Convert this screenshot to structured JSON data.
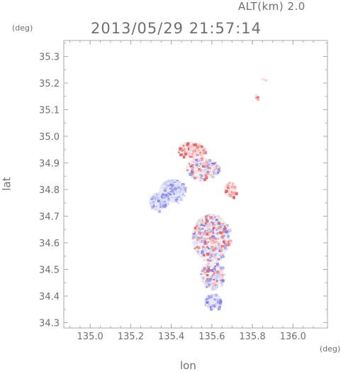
{
  "header": {
    "altitude_label": "ALT(km)  2.0",
    "timestamp": "2013/05/29 21:57:14"
  },
  "chart_data": {
    "type": "heatmap",
    "title": "2013/05/29 21:57:14",
    "subtitle": "ALT(km)  2.0",
    "xlabel": "lon",
    "ylabel": "lat",
    "x_unit": "(deg)",
    "y_unit": "(deg)",
    "xlim": [
      134.87,
      136.17
    ],
    "ylim": [
      34.28,
      35.36
    ],
    "x_ticks": [
      135.0,
      135.2,
      135.4,
      135.6,
      135.8,
      136.0
    ],
    "x_tick_labels": [
      "135.0",
      "135.2",
      "135.4",
      "135.6",
      "135.8",
      "136.0"
    ],
    "y_ticks": [
      34.3,
      34.4,
      34.5,
      34.6,
      34.7,
      34.8,
      34.9,
      35.0,
      35.1,
      35.2,
      35.3
    ],
    "y_tick_labels": [
      "34.3",
      "34.4",
      "34.5",
      "34.6",
      "34.7",
      "34.8",
      "34.9",
      "35.0",
      "35.1",
      "35.2",
      "35.3"
    ],
    "grid": false,
    "colors": {
      "positive": "#f07878",
      "negative": "#8c8cf0",
      "frame": "#aaaaaa",
      "text": "#6f6f6f"
    },
    "regions": [
      {
        "sign": "negative",
        "lon": [
          135.34,
          135.47
        ],
        "lat": [
          34.75,
          34.84
        ]
      },
      {
        "sign": "negative",
        "lon": [
          135.29,
          135.38
        ],
        "lat": [
          34.72,
          34.79
        ]
      },
      {
        "sign": "positive",
        "lon": [
          135.43,
          135.57
        ],
        "lat": [
          34.92,
          34.98
        ]
      },
      {
        "sign": "mixed",
        "lon": [
          135.47,
          135.63
        ],
        "lat": [
          34.84,
          34.92
        ]
      },
      {
        "sign": "positive",
        "lon": [
          135.66,
          135.72
        ],
        "lat": [
          34.77,
          34.83
        ]
      },
      {
        "sign": "mixed",
        "lon": [
          135.5,
          135.69
        ],
        "lat": [
          34.53,
          34.71
        ]
      },
      {
        "sign": "mixed",
        "lon": [
          135.54,
          135.66
        ],
        "lat": [
          34.43,
          34.53
        ]
      },
      {
        "sign": "negative",
        "lon": [
          135.56,
          135.65
        ],
        "lat": [
          34.35,
          34.41
        ]
      },
      {
        "sign": "positive",
        "lon": [
          135.81,
          135.83
        ],
        "lat": [
          35.14,
          35.16
        ]
      },
      {
        "sign": "positive",
        "lon": [
          135.84,
          135.86
        ],
        "lat": [
          35.21,
          35.22
        ]
      }
    ]
  }
}
